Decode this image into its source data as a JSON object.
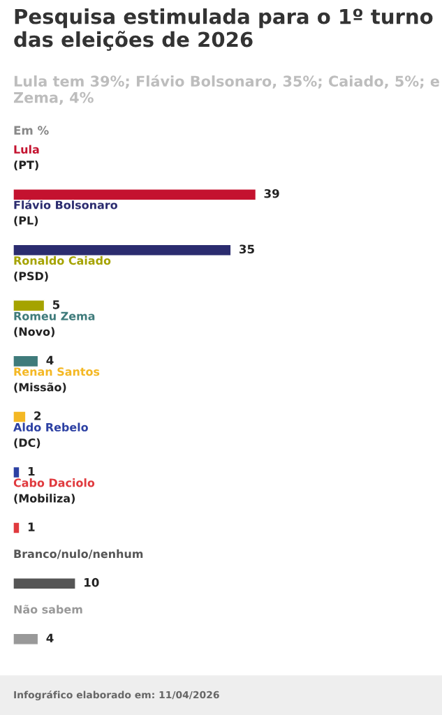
{
  "chart_data": {
    "type": "bar",
    "orientation": "horizontal",
    "title": "Pesquisa estimulada para o 1º turno das eleições de 2026",
    "subtitle": "Lula tem 39%; Flávio Bolsonaro, 35%; Caiado, 5%; e Zema, 4%",
    "categories": [
      "Lula\n(PT)",
      "Flávio Bolsonaro\n(PL)",
      "Ronaldo Caiado\n(PSD)",
      "Romeu Zema\n(Novo)",
      "Renan Santos\n(Missão)",
      "Aldo Rebelo\n(DC)",
      "Cabo Daciolo\n(Mobiliza)",
      "Branco/nulo/nenhum",
      "Não sabem"
    ],
    "values": [
      39,
      35,
      5,
      4,
      2,
      1,
      1,
      10,
      4
    ],
    "colors": [
      "#c4122f",
      "#2b2c6f",
      "#a5a300",
      "#3f7b7b",
      "#f4b824",
      "#2c40a3",
      "#e03a3e",
      "#555555",
      "#999999"
    ],
    "data_labels": true,
    "annotations": [
      "Em %",
      "Infográfico elaborado em: 11/04/2026"
    ]
  }
}
